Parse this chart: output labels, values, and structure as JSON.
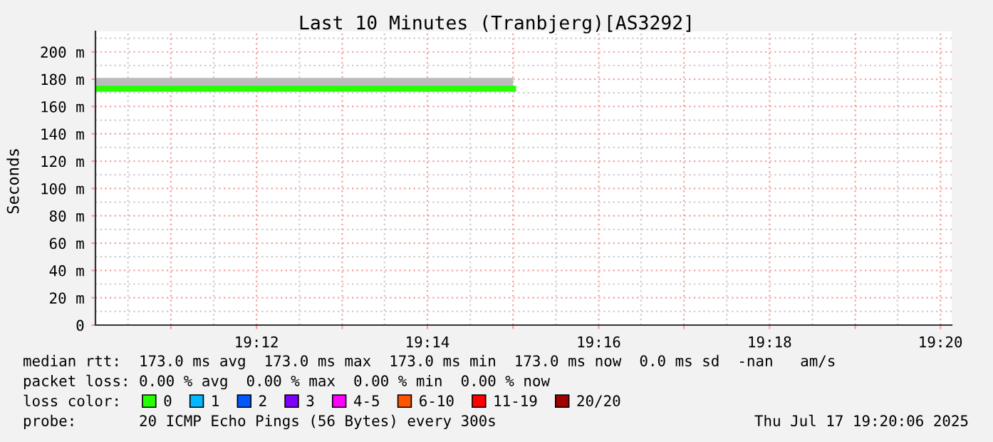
{
  "chart_data": {
    "type": "line",
    "title": "Last 10 Minutes (Tranbjerg)[AS3292]",
    "ylabel": "Seconds",
    "x": [
      19.1686,
      19.25
    ],
    "xlim": [
      19.1686,
      19.3355
    ],
    "xticks": [
      {
        "value": 19.1833,
        "label": null
      },
      {
        "value": 19.2,
        "label": "19:12"
      },
      {
        "value": 19.2167,
        "label": null
      },
      {
        "value": 19.2333,
        "label": "19:14"
      },
      {
        "value": 19.25,
        "label": null
      },
      {
        "value": 19.2667,
        "label": "19:16"
      },
      {
        "value": 19.2833,
        "label": null
      },
      {
        "value": 19.3,
        "label": "19:18"
      },
      {
        "value": 19.3167,
        "label": null
      },
      {
        "value": 19.3333,
        "label": "19:20"
      }
    ],
    "ylim": [
      0,
      215
    ],
    "yticks": [
      0,
      {
        "value": 20,
        "label": "20 m"
      },
      {
        "value": 40,
        "label": "40 m"
      },
      {
        "value": 60,
        "label": "60 m"
      },
      {
        "value": 80,
        "label": "80 m"
      },
      {
        "value": 100,
        "label": "100 m"
      },
      {
        "value": 120,
        "label": "120 m"
      },
      {
        "value": 140,
        "label": "140 m"
      },
      {
        "value": 160,
        "label": "160 m"
      },
      {
        "value": 180,
        "label": "180 m"
      },
      {
        "value": 200,
        "label": "200 m"
      }
    ],
    "grid": true,
    "legend": "bottom",
    "legend_title": "loss color:",
    "series": [
      {
        "name": "0",
        "color": "#26ff00",
        "values": [
          173,
          173
        ],
        "lower": [
          174,
          174
        ],
        "upper": [
          181,
          181
        ]
      },
      {
        "name": "1",
        "color": "#00b8ff",
        "values": [
          null,
          null
        ]
      },
      {
        "name": "2",
        "color": "#0059ff",
        "values": [
          null,
          null
        ]
      },
      {
        "name": "3",
        "color": "#7e00ff",
        "values": [
          null,
          null
        ]
      },
      {
        "name": "4-5",
        "color": "#ff00ff",
        "values": [
          null,
          null
        ]
      },
      {
        "name": "6-10",
        "color": "#ff5500",
        "values": [
          null,
          null
        ]
      },
      {
        "name": "11-19",
        "color": "#ff0000",
        "values": [
          null,
          null
        ]
      },
      {
        "name": "20/20",
        "color": "#a10000",
        "values": [
          null,
          null
        ]
      }
    ],
    "annotations": [
      "median rtt:  173.0 ms avg  173.0 ms max  173.0 ms min  173.0 ms now  0.0 ms sd  -nan   am/s",
      "packet loss: 0.00 % avg  0.00 % max  0.00 % min  0.00 % now",
      "probe:       20 ICMP Echo Pings (56 Bytes) every 300s",
      "Thu Jul 17 19:20:06 2025"
    ]
  }
}
